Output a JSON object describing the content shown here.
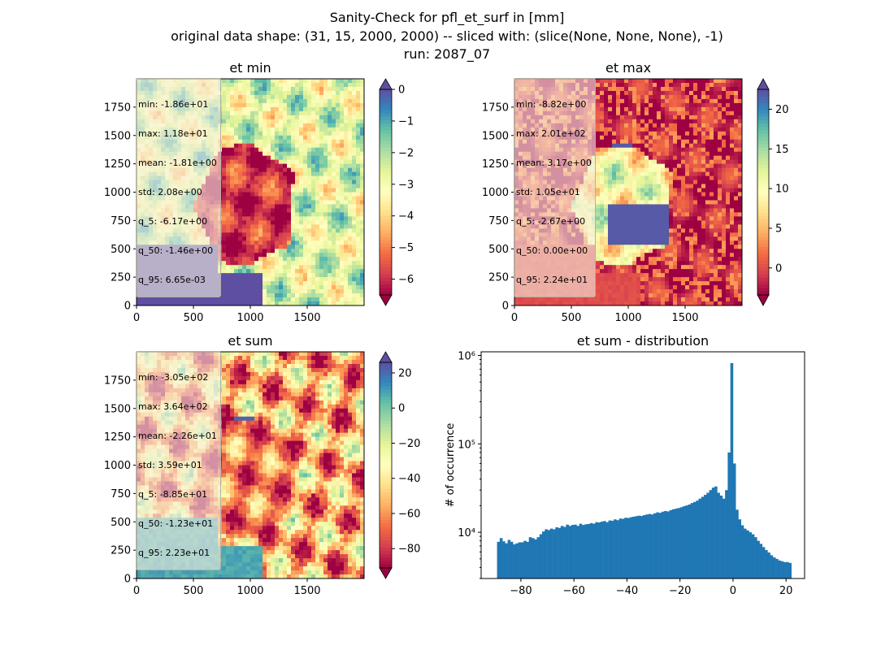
{
  "suptitle": {
    "line1": "Sanity-Check for pfl_et_surf in [mm]",
    "line2": "original data shape: (31, 15, 2000, 2000) -- sliced with: (slice(None, None, None), -1)",
    "line3": "run: 2087_07"
  },
  "chart_data": [
    {
      "type": "heatmap",
      "title": "et min",
      "xlim": [
        0,
        2000
      ],
      "ylim": [
        0,
        2000
      ],
      "x_ticks": [
        0,
        500,
        1000,
        1500
      ],
      "y_ticks": [
        0,
        250,
        500,
        750,
        1000,
        1250,
        1500,
        1750
      ],
      "colormap": "Spectral",
      "colorbar": {
        "range": [
          -6.5,
          0
        ],
        "ticks": [
          0,
          -1,
          -2,
          -3,
          -4,
          -5,
          -6
        ],
        "extend": "both"
      },
      "stats": [
        "min: -1.86e+01",
        "max: 1.18e+01",
        "mean: -1.81e+00",
        "std: 2.08e+00",
        "q_5: -6.17e+00",
        "q_50: -1.46e+00",
        "q_95: 6.65e-03"
      ]
    },
    {
      "type": "heatmap",
      "title": "et max",
      "xlim": [
        0,
        2000
      ],
      "ylim": [
        0,
        2000
      ],
      "x_ticks": [
        0,
        500,
        1000,
        1500
      ],
      "y_ticks": [
        0,
        250,
        500,
        750,
        1000,
        1250,
        1500,
        1750
      ],
      "colormap": "Spectral",
      "colorbar": {
        "range": [
          -3.4,
          22.5
        ],
        "ticks": [
          20,
          15,
          10,
          5,
          0
        ],
        "extend": "both"
      },
      "stats": [
        "min: -8.82e+00",
        "max: 2.01e+02",
        "mean: 3.17e+00",
        "std: 1.05e+01",
        "q_5: -2.67e+00",
        "q_50: 0.00e+00",
        "q_95: 2.24e+01"
      ]
    },
    {
      "type": "heatmap",
      "title": "et sum",
      "xlim": [
        0,
        2000
      ],
      "ylim": [
        0,
        2000
      ],
      "x_ticks": [
        0,
        500,
        1000,
        1500
      ],
      "y_ticks": [
        0,
        250,
        500,
        750,
        1000,
        1250,
        1500,
        1750
      ],
      "colormap": "Spectral",
      "colorbar": {
        "range": [
          -91,
          26
        ],
        "ticks": [
          20,
          0,
          -20,
          -40,
          -60,
          -80
        ],
        "extend": "both"
      },
      "stats": [
        "min: -3.05e+02",
        "max: 3.64e+02",
        "mean: -2.26e+01",
        "std: 3.59e+01",
        "q_5: -8.85e+01",
        "q_50: -1.23e+01",
        "q_95: 2.23e+01"
      ]
    },
    {
      "type": "bar",
      "title": "et sum - distribution",
      "ylabel": "# of occurrence",
      "yscale": "log",
      "xlim": [
        -95,
        27
      ],
      "ylim": [
        3000,
        1100000
      ],
      "x_ticks": [
        -80,
        -60,
        -40,
        -20,
        0,
        20
      ],
      "y_ticks": [
        {
          "value": 10000,
          "label": "10⁴"
        },
        {
          "value": 100000,
          "label": "10⁵"
        },
        {
          "value": 1000000,
          "label": "10⁶"
        }
      ],
      "bar_color": "#1f77b4",
      "bins": {
        "x": [
          -88.5,
          -87.5,
          -86.5,
          -85.5,
          -84.5,
          -83.5,
          -82.5,
          -81.5,
          -80.5,
          -79.5,
          -78.5,
          -77.5,
          -76.5,
          -75.5,
          -74.5,
          -73.5,
          -72.5,
          -71.5,
          -70.5,
          -69.5,
          -68.5,
          -67.5,
          -66.5,
          -65.5,
          -64.5,
          -63.5,
          -62.5,
          -61.5,
          -60.5,
          -59.5,
          -58.5,
          -57.5,
          -56.5,
          -55.5,
          -54.5,
          -53.5,
          -52.5,
          -51.5,
          -50.5,
          -49.5,
          -48.5,
          -47.5,
          -46.5,
          -45.5,
          -44.5,
          -43.5,
          -42.5,
          -41.5,
          -40.5,
          -39.5,
          -38.5,
          -37.5,
          -36.5,
          -35.5,
          -34.5,
          -33.5,
          -32.5,
          -31.5,
          -30.5,
          -29.5,
          -28.5,
          -27.5,
          -26.5,
          -25.5,
          -24.5,
          -23.5,
          -22.5,
          -21.5,
          -20.5,
          -19.5,
          -18.5,
          -17.5,
          -16.5,
          -15.5,
          -14.5,
          -13.5,
          -12.5,
          -11.5,
          -10.5,
          -9.5,
          -8.5,
          -7.5,
          -6.5,
          -5.5,
          -4.5,
          -3.5,
          -2.5,
          -1.5,
          -0.5,
          0.5,
          1.5,
          2.5,
          3.5,
          4.5,
          5.5,
          6.5,
          7.5,
          8.5,
          9.5,
          10.5,
          11.5,
          12.5,
          13.5,
          14.5,
          15.5,
          16.5,
          17.5,
          18.5,
          19.5,
          20.5,
          21.5
        ],
        "counts": [
          7800,
          8600,
          7900,
          7500,
          8200,
          7800,
          7300,
          7500,
          7700,
          7700,
          8000,
          7800,
          8800,
          8600,
          8300,
          8800,
          9500,
          10200,
          10800,
          10600,
          11000,
          10800,
          11400,
          11200,
          11800,
          11500,
          12200,
          11800,
          12100,
          12200,
          11800,
          12500,
          12100,
          12300,
          12400,
          12700,
          12500,
          13000,
          12900,
          13200,
          13400,
          13000,
          13600,
          13500,
          14000,
          13700,
          14300,
          14200,
          14600,
          14500,
          14800,
          15000,
          15200,
          15400,
          15300,
          15600,
          15900,
          16100,
          15900,
          16400,
          16800,
          16600,
          17100,
          17400,
          17200,
          17800,
          18200,
          18500,
          18800,
          19200,
          19700,
          20100,
          20600,
          21400,
          22000,
          22800,
          24000,
          25200,
          26500,
          28000,
          30000,
          32000,
          33000,
          28000,
          26000,
          24000,
          30000,
          80000,
          820000,
          60000,
          18000,
          14000,
          12000,
          11000,
          10500,
          10000,
          9500,
          8800,
          8000,
          7400,
          6800,
          6300,
          5900,
          5500,
          5200,
          5000,
          4800,
          4700,
          4600,
          4600,
          4500
        ]
      }
    }
  ]
}
